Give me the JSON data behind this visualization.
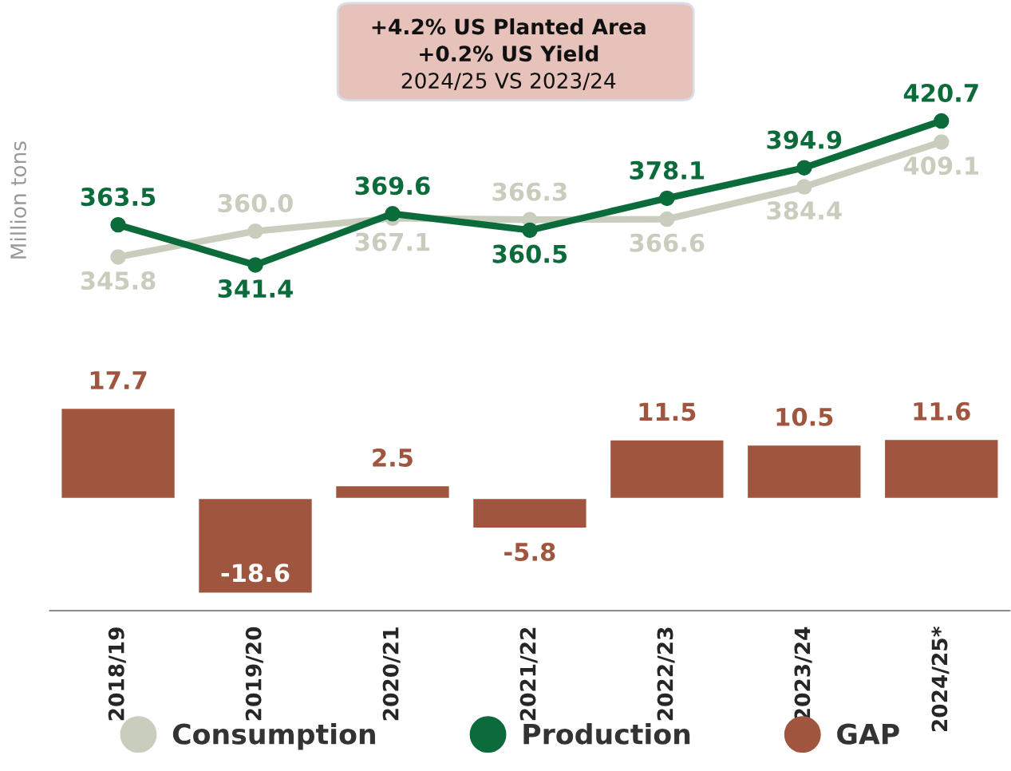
{
  "chart_data": [
    {
      "type": "line",
      "ylabel": "Million tons",
      "annotations": [
        "+4.2% US Planted Area",
        "+0.2% US Yield",
        "2024/25 VS 2023/24"
      ],
      "categories": [
        null,
        null,
        null,
        null,
        null,
        null,
        null
      ],
      "series": [
        {
          "name": "Consumption",
          "color": "#c9cdbd",
          "values": [
            345.8,
            360.0,
            367.1,
            366.3,
            366.6,
            384.4,
            409.1
          ],
          "value_labels": [
            "345.8",
            "360.0",
            "367.1",
            "366.3",
            "366.6",
            "384.4",
            "409.1"
          ]
        },
        {
          "name": "Production",
          "color": "#0b6b3a",
          "values": [
            363.5,
            341.4,
            369.6,
            360.5,
            378.1,
            394.9,
            420.7
          ],
          "value_labels": [
            "363.5",
            "341.4",
            "369.6",
            "360.5",
            "378.1",
            "394.9",
            "420.7"
          ]
        }
      ],
      "marker": "circle",
      "line_style": "solid",
      "legend": "bottom",
      "tick_labels": false
    },
    {
      "type": "bar",
      "categories": [
        "2018/19",
        "2019/20",
        "2020/21",
        "2021/22",
        "2022/23",
        "2023/24",
        "2024/25*"
      ],
      "series": [
        {
          "name": "GAP",
          "color": "#a0553f",
          "values": [
            17.7,
            -18.6,
            2.5,
            -5.8,
            11.5,
            10.5,
            11.6
          ],
          "value_labels": [
            "17.7",
            "-18.6",
            "2.5",
            "-5.8",
            "11.5",
            "10.5",
            "11.6"
          ]
        }
      ],
      "legend": "bottom",
      "tick_labels": "x"
    }
  ]
}
